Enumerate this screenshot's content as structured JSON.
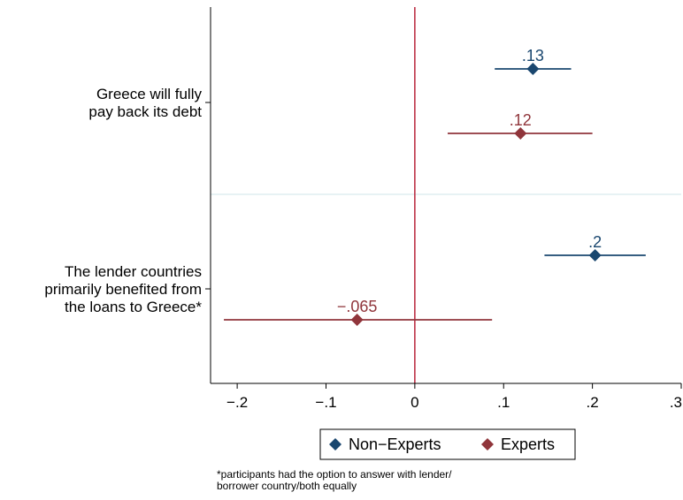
{
  "chart_data": {
    "type": "scatter",
    "subtype": "coefficient-plot-horizontal",
    "xlim": [
      -0.23,
      0.3
    ],
    "x_ticks": [
      -0.2,
      -0.1,
      0,
      0.1,
      0.2,
      0.3
    ],
    "x_tick_labels": [
      "−.2",
      "−.1",
      "0",
      ".1",
      ".2",
      ".3"
    ],
    "reference_line_x": 0,
    "groups": [
      {
        "label_lines": [
          "Greece will fully",
          "pay back its debt"
        ]
      },
      {
        "label_lines": [
          "The lender countries",
          "primarily benefited from",
          "the loans to Greece*"
        ]
      }
    ],
    "series": [
      {
        "name": "Non−Experts",
        "color": "#1a476f",
        "points": [
          {
            "group": 0,
            "estimate": 0.133,
            "ci": [
              0.09,
              0.176
            ],
            "label": ".13"
          },
          {
            "group": 1,
            "estimate": 0.203,
            "ci": [
              0.146,
              0.26
            ],
            "label": ".2"
          }
        ]
      },
      {
        "name": "Experts",
        "color": "#90353b",
        "points": [
          {
            "group": 0,
            "estimate": 0.119,
            "ci": [
              0.037,
              0.2
            ],
            "label": ".12"
          },
          {
            "group": 1,
            "estimate": -0.065,
            "ci": [
              -0.215,
              0.087
            ],
            "label": "−.065"
          }
        ]
      }
    ],
    "reference_line_color": "#b8233a",
    "separator_color": "#dfeef1",
    "legend_position": "bottom-center"
  },
  "footnote": {
    "line1": "*participants had the option to answer with lender/",
    "line2": "borrower country/both equally"
  }
}
